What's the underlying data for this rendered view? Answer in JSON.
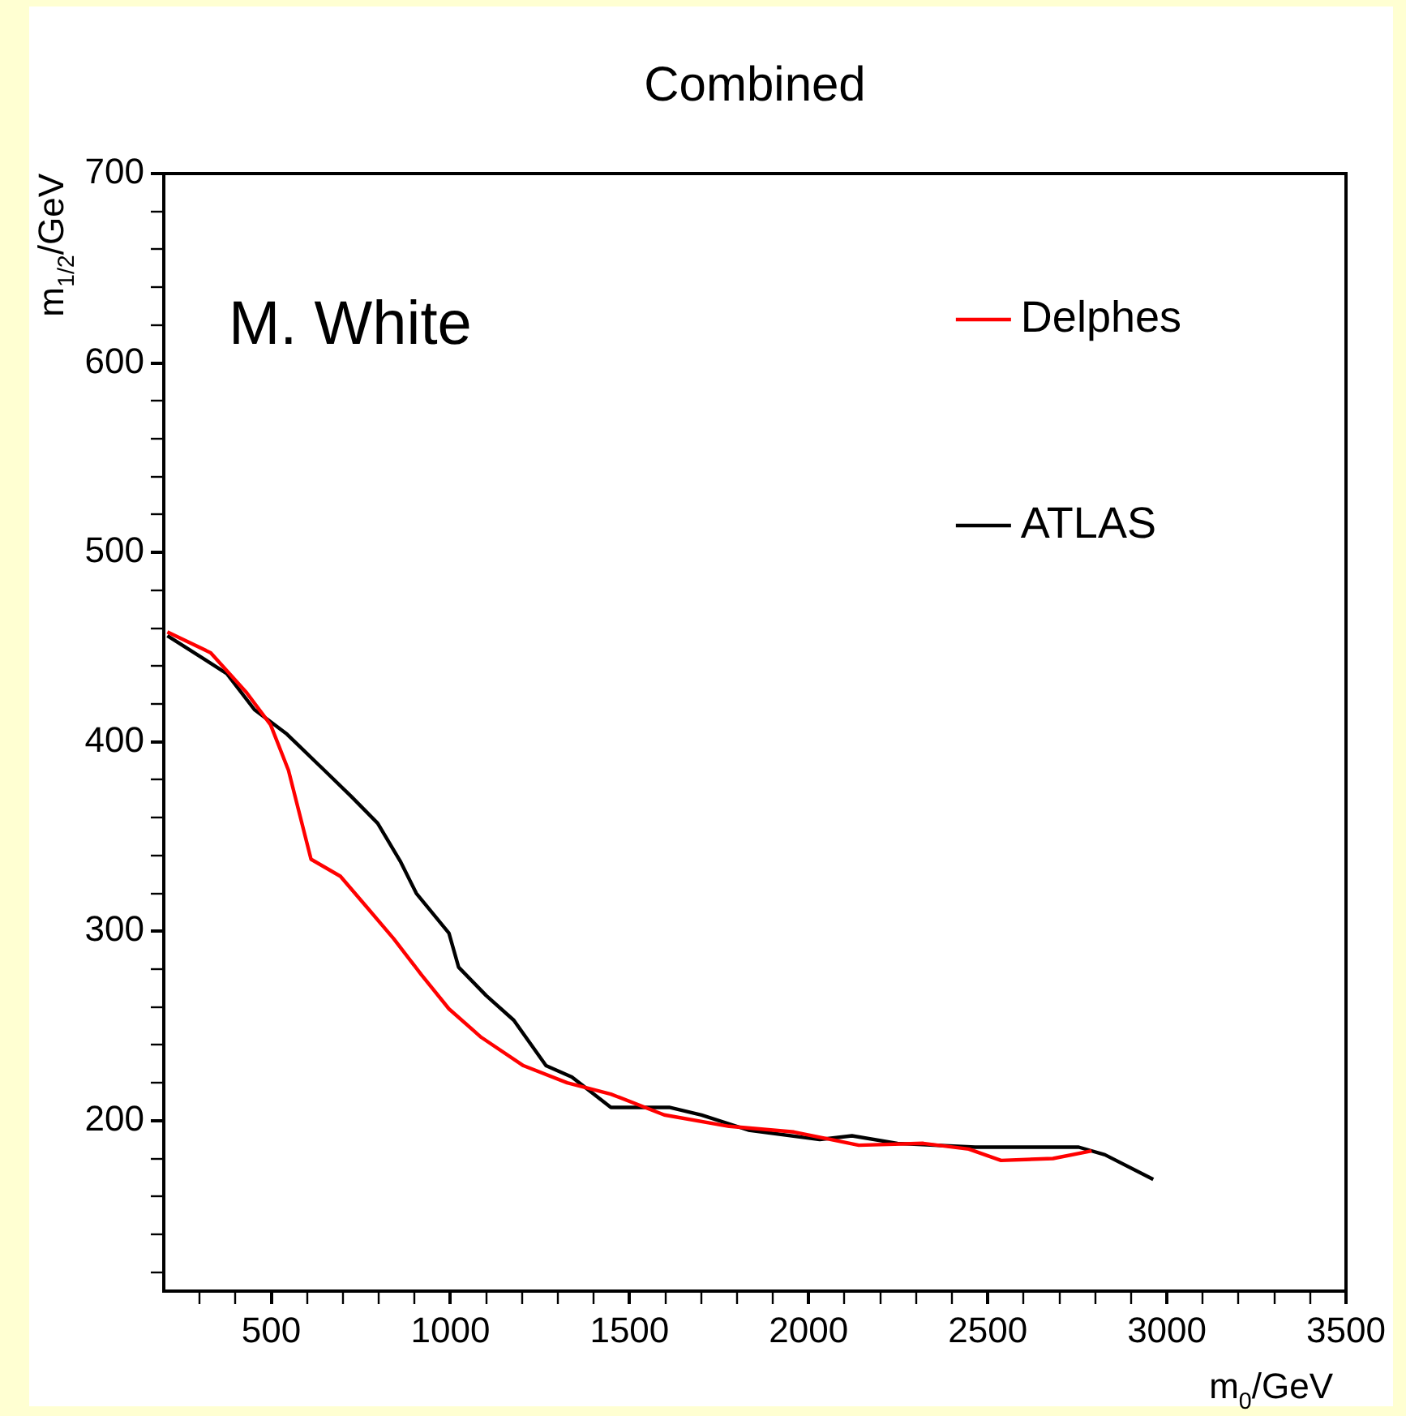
{
  "chart_data": {
    "type": "line",
    "title": "Combined",
    "xlabel": "m$_{0}$/GeV",
    "ylabel": "m$_{1/2}$/GeV",
    "annotations": [
      "M. White"
    ],
    "x": [
      210,
      331,
      431,
      498,
      548,
      611,
      693,
      770,
      842,
      919,
      996,
      1086,
      1204,
      1326,
      1448,
      1597,
      1778,
      1959,
      2140,
      2320,
      2447,
      2537,
      2682,
      2790
    ],
    "series": [
      {
        "name": "Delphes",
        "color": "#ff0000",
        "values": [
          458,
          447,
          426,
          409,
          385,
          338,
          329,
          312,
          296,
          277,
          259,
          244,
          229,
          220,
          214,
          203,
          197,
          194,
          187,
          188,
          185,
          179,
          180,
          184
        ]
      },
      {
        "name": "ATLAS",
        "color": "#000000",
        "x": [
          210,
          376,
          453,
          544,
          648,
          724,
          797,
          860,
          905,
          996,
          1023,
          1100,
          1177,
          1267,
          1339,
          1448,
          1611,
          1701,
          1832,
          2031,
          2121,
          2248,
          2465,
          2754,
          2827,
          2962
        ],
        "values": [
          456,
          436,
          417,
          404,
          385,
          371,
          357,
          337,
          320,
          299,
          281,
          266,
          253,
          229,
          223,
          207,
          207,
          203,
          195,
          190,
          192,
          188,
          186,
          186,
          182,
          169
        ]
      }
    ],
    "xlim": [
      200,
      3500
    ],
    "xticks": [
      {
        "value": 300,
        "label": null
      },
      {
        "value": 400,
        "label": null
      },
      500,
      {
        "value": 600,
        "label": null
      },
      {
        "value": 700,
        "label": null
      },
      {
        "value": 800,
        "label": null
      },
      {
        "value": 900,
        "label": null
      },
      1000,
      {
        "value": 1100,
        "label": null
      },
      {
        "value": 1200,
        "label": null
      },
      {
        "value": 1300,
        "label": null
      },
      {
        "value": 1400,
        "label": null
      },
      1500,
      {
        "value": 1600,
        "label": null
      },
      {
        "value": 1700,
        "label": null
      },
      {
        "value": 1800,
        "label": null
      },
      {
        "value": 1900,
        "label": null
      },
      2000,
      {
        "value": 2100,
        "label": null
      },
      {
        "value": 2200,
        "label": null
      },
      {
        "value": 2300,
        "label": null
      },
      {
        "value": 2400,
        "label": null
      },
      2500,
      {
        "value": 2600,
        "label": null
      },
      {
        "value": 2700,
        "label": null
      },
      {
        "value": 2800,
        "label": null
      },
      {
        "value": 2900,
        "label": null
      },
      3000,
      {
        "value": 3100,
        "label": null
      },
      {
        "value": 3200,
        "label": null
      },
      {
        "value": 3300,
        "label": null
      },
      {
        "value": 3400,
        "label": null
      },
      3500
    ],
    "ylim": [
      110,
      700
    ],
    "yticks": [
      {
        "value": 120,
        "label": null
      },
      {
        "value": 140,
        "label": null
      },
      {
        "value": 160,
        "label": null
      },
      {
        "value": 180,
        "label": null
      },
      200,
      {
        "value": 220,
        "label": null
      },
      {
        "value": 240,
        "label": null
      },
      {
        "value": 260,
        "label": null
      },
      {
        "value": 280,
        "label": null
      },
      300,
      {
        "value": 320,
        "label": null
      },
      {
        "value": 340,
        "label": null
      },
      {
        "value": 360,
        "label": null
      },
      {
        "value": 380,
        "label": null
      },
      400,
      {
        "value": 420,
        "label": null
      },
      {
        "value": 440,
        "label": null
      },
      {
        "value": 460,
        "label": null
      },
      {
        "value": 480,
        "label": null
      },
      500,
      {
        "value": 520,
        "label": null
      },
      {
        "value": 540,
        "label": null
      },
      {
        "value": 560,
        "label": null
      },
      {
        "value": 580,
        "label": null
      },
      600,
      {
        "value": 620,
        "label": null
      },
      {
        "value": 640,
        "label": null
      },
      {
        "value": 660,
        "label": null
      },
      {
        "value": 680,
        "label": null
      },
      700
    ],
    "grid": false,
    "legend": "top right",
    "marker": "none",
    "line_style": "solid"
  }
}
